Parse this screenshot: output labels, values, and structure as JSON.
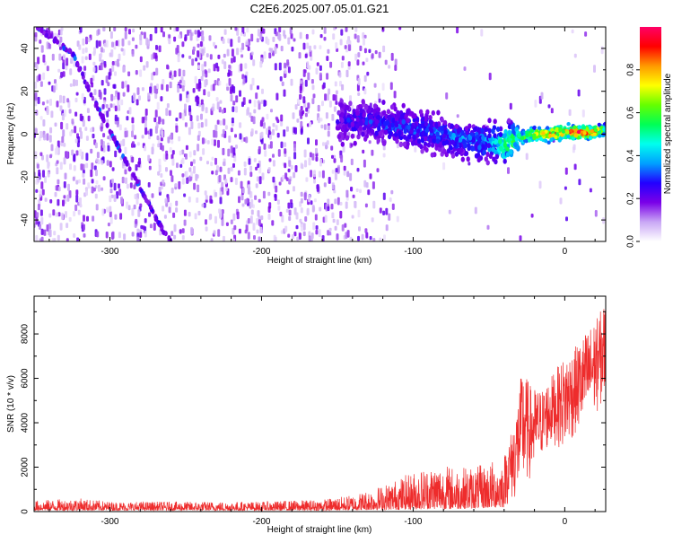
{
  "figure": {
    "title": "C2E6.2025.007.05.01.G21"
  },
  "chart_data": [
    {
      "type": "heatmap",
      "xlabel": "Height of straight line (km)",
      "ylabel": "Frequency (Hz)",
      "xlim": [
        -350,
        27
      ],
      "ylim": [
        -50,
        50
      ],
      "xticks": [
        -300,
        -200,
        -100,
        0
      ],
      "yticks": [
        -40,
        -20,
        0,
        20,
        40
      ],
      "colorbar": {
        "label": "Normalized spectral amplitude",
        "range": [
          0.0,
          1.0
        ],
        "ticks": [
          0.0,
          0.2,
          0.4,
          0.6,
          0.8
        ],
        "tick_labels": [
          "0.0",
          "0.2",
          "0.4",
          "0.6",
          "0.8"
        ],
        "colormap": [
          "#ffffff",
          "#c9a7f5",
          "#7a00e8",
          "#2200ff",
          "#00a0ff",
          "#00ffee",
          "#00ff55",
          "#66ff00",
          "#ffff00",
          "#ff9900",
          "#ff0000",
          "#ff0066"
        ]
      },
      "main_trace": [
        {
          "x": -150,
          "y": 7,
          "amp": 0.25
        },
        {
          "x": -140,
          "y": 6,
          "amp": 0.3
        },
        {
          "x": -130,
          "y": 6,
          "amp": 0.3
        },
        {
          "x": -120,
          "y": 4,
          "amp": 0.32
        },
        {
          "x": -110,
          "y": 4,
          "amp": 0.35
        },
        {
          "x": -100,
          "y": 2,
          "amp": 0.35
        },
        {
          "x": -90,
          "y": 1,
          "amp": 0.35
        },
        {
          "x": -80,
          "y": 0,
          "amp": 0.35
        },
        {
          "x": -70,
          "y": -2,
          "amp": 0.38
        },
        {
          "x": -60,
          "y": -3,
          "amp": 0.38
        },
        {
          "x": -50,
          "y": -4,
          "amp": 0.4
        },
        {
          "x": -40,
          "y": -5,
          "amp": 0.6
        },
        {
          "x": -30,
          "y": -2,
          "amp": 0.6
        },
        {
          "x": -20,
          "y": 0,
          "amp": 0.8
        },
        {
          "x": -10,
          "y": 0,
          "amp": 0.9
        },
        {
          "x": 0,
          "y": 1,
          "amp": 0.9
        },
        {
          "x": 10,
          "y": 1,
          "amp": 0.95
        },
        {
          "x": 20,
          "y": 1,
          "amp": 0.9
        },
        {
          "x": 27,
          "y": 2,
          "amp": 0.6
        }
      ],
      "diagonal_trace": [
        {
          "x": -348,
          "y": 50
        },
        {
          "x": -325,
          "y": 38
        },
        {
          "x": -310,
          "y": 15
        },
        {
          "x": -295,
          "y": -5
        },
        {
          "x": -280,
          "y": -25
        },
        {
          "x": -265,
          "y": -45
        },
        {
          "x": -260,
          "y": -50
        }
      ]
    },
    {
      "type": "line",
      "xlabel": "Height of straight line (km)",
      "ylabel": "SNR (10 * v/v)",
      "xlim": [
        -350,
        27
      ],
      "ylim": [
        0,
        9700
      ],
      "xticks": [
        -300,
        -200,
        -100,
        0
      ],
      "yticks": [
        0,
        2000,
        4000,
        6000,
        8000
      ],
      "color": "#ee2c2c",
      "envelope": [
        {
          "x": -350,
          "lo": 50,
          "hi": 500
        },
        {
          "x": -320,
          "lo": 50,
          "hi": 600
        },
        {
          "x": -300,
          "lo": 50,
          "hi": 450
        },
        {
          "x": -250,
          "lo": 50,
          "hi": 450
        },
        {
          "x": -200,
          "lo": 50,
          "hi": 450
        },
        {
          "x": -160,
          "lo": 50,
          "hi": 550
        },
        {
          "x": -140,
          "lo": 60,
          "hi": 750
        },
        {
          "x": -120,
          "lo": 80,
          "hi": 1200
        },
        {
          "x": -100,
          "lo": 100,
          "hi": 1800
        },
        {
          "x": -85,
          "lo": 120,
          "hi": 2200
        },
        {
          "x": -70,
          "lo": 120,
          "hi": 2000
        },
        {
          "x": -55,
          "lo": 150,
          "hi": 2100
        },
        {
          "x": -40,
          "lo": 200,
          "hi": 2500
        },
        {
          "x": -33,
          "lo": 500,
          "hi": 4200
        },
        {
          "x": -28,
          "lo": 1000,
          "hi": 6500
        },
        {
          "x": -22,
          "lo": 1500,
          "hi": 5600
        },
        {
          "x": -15,
          "lo": 2500,
          "hi": 5500
        },
        {
          "x": -8,
          "lo": 3000,
          "hi": 6200
        },
        {
          "x": 0,
          "lo": 2800,
          "hi": 7000
        },
        {
          "x": 8,
          "lo": 3500,
          "hi": 7500
        },
        {
          "x": 15,
          "lo": 4000,
          "hi": 8200
        },
        {
          "x": 22,
          "lo": 4500,
          "hi": 8800
        },
        {
          "x": 27,
          "lo": 5000,
          "hi": 9600
        }
      ]
    }
  ]
}
